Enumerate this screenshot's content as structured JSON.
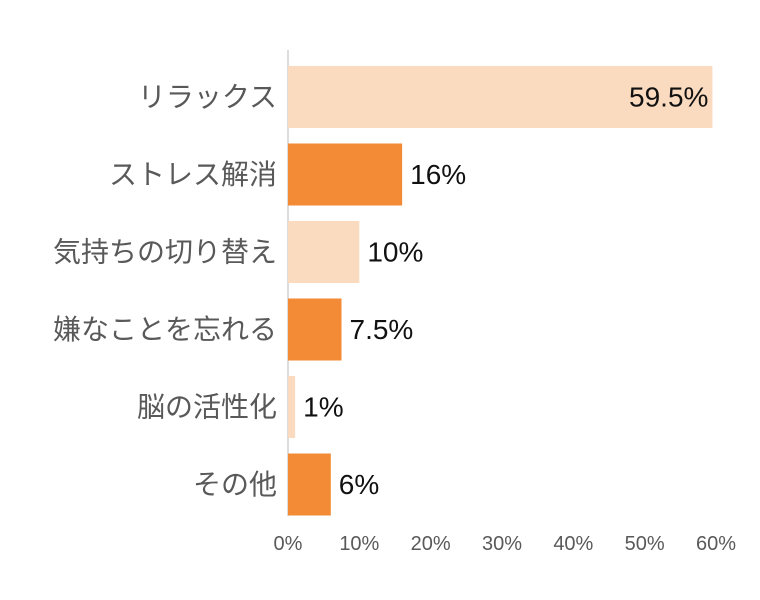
{
  "chart_data": {
    "type": "bar",
    "orientation": "horizontal",
    "categories": [
      "リラックス",
      "ストレス解消",
      "気持ちの切り替え",
      "嫌なことを忘れる",
      "脳の活性化",
      "その他"
    ],
    "values": [
      59.5,
      16,
      10,
      7.5,
      1,
      6
    ],
    "data_labels": [
      "59.5%",
      "16%",
      "10%",
      "7.5%",
      "1%",
      "6%"
    ],
    "bar_colors": [
      "#FBDBC0",
      "#F28A36",
      "#FBDBC0",
      "#F28A36",
      "#FBDBC0",
      "#F28A36"
    ],
    "xlim": [
      0,
      60
    ],
    "x_ticks": [
      0,
      10,
      20,
      30,
      40,
      50,
      60
    ],
    "x_tick_labels": [
      "0%",
      "10%",
      "20%",
      "30%",
      "40%",
      "50%",
      "60%"
    ],
    "grid": false,
    "legend": "none"
  }
}
